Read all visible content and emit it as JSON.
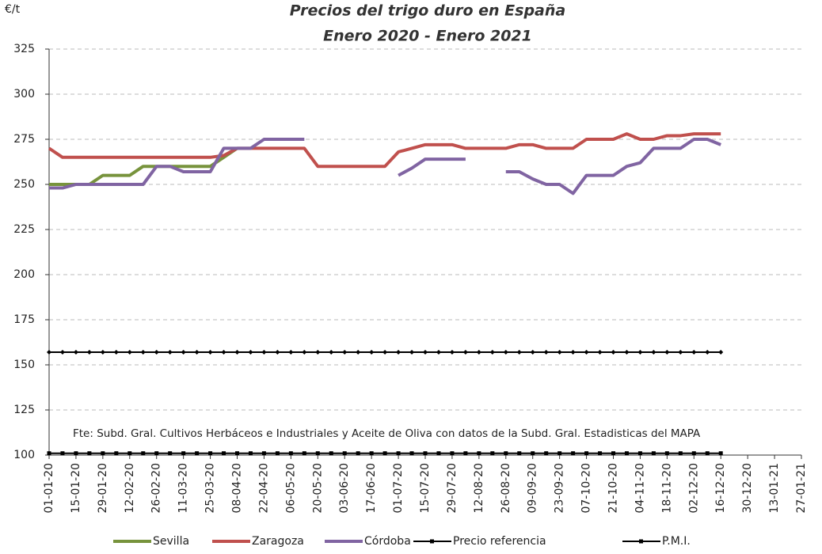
{
  "chart_data": {
    "type": "line",
    "title": "Precios del trigo duro en España",
    "subtitle": "Enero 2020 - Enero 2021",
    "y_label": "€/t",
    "annotation": "Fte: Subd. Gral. Cultivos Herbáceos e Industriales y Aceite de Oliva con datos de la Subd. Gral. Estadisticas del MAPA",
    "categories": [
      "01-01-20",
      null,
      "15-01-20",
      null,
      "29-01-20",
      null,
      "12-02-20",
      null,
      "26-02-20",
      null,
      "11-03-20",
      null,
      "25-03-20",
      null,
      "08-04-20",
      null,
      "22-04-20",
      null,
      "06-05-20",
      null,
      "20-05-20",
      null,
      "03-06-20",
      null,
      "17-06-20",
      null,
      "01-07-20",
      null,
      "15-07-20",
      null,
      "29-07-20",
      null,
      "12-08-20",
      null,
      "26-08-20",
      null,
      "09-09-20",
      null,
      "23-09-20",
      null,
      "07-10-20",
      null,
      "21-10-20",
      null,
      "04-11-20",
      null,
      "18-11-20",
      null,
      "02-12-20",
      null,
      "16-12-20",
      null,
      "30-12-20",
      null,
      "13-01-21",
      null,
      "27-01-21"
    ],
    "series": [
      {
        "name": "Sevilla",
        "color": "#77933c",
        "values": [
          250,
          250,
          250,
          250,
          255,
          255,
          255,
          260,
          260,
          260,
          260,
          260,
          260,
          265,
          270,
          null,
          null,
          null,
          null,
          null,
          null,
          null,
          null,
          null,
          null,
          null,
          null,
          null,
          null,
          null,
          null,
          null,
          null,
          null,
          null,
          null,
          null,
          null,
          null,
          null,
          null,
          null,
          null,
          null,
          null,
          null,
          null,
          null,
          null,
          null,
          null,
          null,
          null,
          null,
          null,
          null,
          null
        ]
      },
      {
        "name": "Zaragoza",
        "color": "#c0504d",
        "values": [
          270,
          265,
          265,
          265,
          265,
          265,
          265,
          265,
          265,
          265,
          265,
          265,
          265,
          266,
          270,
          270,
          270,
          270,
          270,
          270,
          260,
          260,
          260,
          260,
          260,
          260,
          268,
          270,
          272,
          272,
          272,
          270,
          270,
          270,
          270,
          272,
          272,
          270,
          270,
          270,
          275,
          275,
          275,
          278,
          275,
          275,
          277,
          277,
          278,
          278,
          278,
          null,
          null,
          null,
          null,
          null,
          null
        ]
      },
      {
        "name": "Córdoba",
        "color": "#8064a2",
        "values": [
          248,
          248,
          250,
          250,
          250,
          250,
          250,
          250,
          260,
          260,
          257,
          257,
          257,
          270,
          270,
          270,
          275,
          275,
          275,
          275,
          null,
          null,
          null,
          null,
          null,
          null,
          255,
          259,
          264,
          264,
          264,
          264,
          null,
          null,
          257,
          257,
          253,
          250,
          250,
          245,
          255,
          255,
          255,
          260,
          262,
          270,
          270,
          270,
          275,
          275,
          272,
          null,
          null,
          null,
          null,
          null,
          null
        ]
      },
      {
        "name": "Precio referencia",
        "color": "#000000",
        "marker": "diamond",
        "values": [
          157,
          157,
          157,
          157,
          157,
          157,
          157,
          157,
          157,
          157,
          157,
          157,
          157,
          157,
          157,
          157,
          157,
          157,
          157,
          157,
          157,
          157,
          157,
          157,
          157,
          157,
          157,
          157,
          157,
          157,
          157,
          157,
          157,
          157,
          157,
          157,
          157,
          157,
          157,
          157,
          157,
          157,
          157,
          157,
          157,
          157,
          157,
          157,
          157,
          157,
          157,
          null,
          null,
          null,
          null,
          null,
          null
        ]
      },
      {
        "name": "P.M.I.",
        "color": "#000000",
        "marker": "square",
        "values": [
          101,
          101,
          101,
          101,
          101,
          101,
          101,
          101,
          101,
          101,
          101,
          101,
          101,
          101,
          101,
          101,
          101,
          101,
          101,
          101,
          101,
          101,
          101,
          101,
          101,
          101,
          101,
          101,
          101,
          101,
          101,
          101,
          101,
          101,
          101,
          101,
          101,
          101,
          101,
          101,
          101,
          101,
          101,
          101,
          101,
          101,
          101,
          101,
          101,
          101,
          101,
          null,
          null,
          null,
          null,
          null,
          null
        ]
      }
    ],
    "ylim": [
      100,
      325
    ],
    "yticks": [
      100,
      125,
      150,
      175,
      200,
      225,
      250,
      275,
      300,
      325
    ],
    "grid": true,
    "legend": "bottom"
  }
}
